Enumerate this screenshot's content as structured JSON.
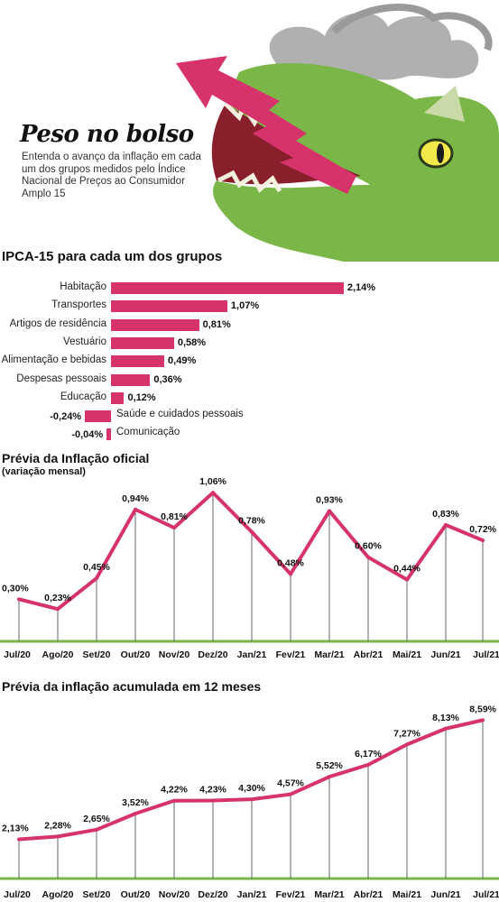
{
  "header": {
    "title": "Peso no bolso",
    "subtitle": "Entenda o avanço da inflação em cada um dos grupos medidos pelo Índice Nacional de Preços ao Consumidor Amplo 15"
  },
  "colors": {
    "accent": "#d6336c",
    "green": "#7ab648",
    "grey_line": "#666666"
  },
  "chart_data": [
    {
      "type": "bar",
      "orientation": "horizontal",
      "title": "IPCA-15 para cada um dos grupos",
      "categories": [
        "Habitação",
        "Transportes",
        "Artigos de residência",
        "Vestuário",
        "Alimentação e bebidas",
        "Despesas pessoais",
        "Educação",
        "Saúde e cuidados pessoais",
        "Comunicação"
      ],
      "values": [
        2.14,
        1.07,
        0.81,
        0.58,
        0.49,
        0.36,
        0.12,
        -0.24,
        -0.04
      ],
      "value_labels": [
        "2,14%",
        "1,07%",
        "0,81%",
        "0,58%",
        "0,49%",
        "0,36%",
        "0,12%",
        "-0,24%",
        "-0,04%"
      ]
    },
    {
      "type": "line",
      "title": "Prévia da Inflação oficial",
      "subtitle": "(variação mensal)",
      "categories": [
        "Jul/20",
        "Ago/20",
        "Set/20",
        "Out/20",
        "Nov/20",
        "Dez/20",
        "Jan/21",
        "Fev/21",
        "Mar/21",
        "Abr/21",
        "Mai/21",
        "Jun/21",
        "Jul/21"
      ],
      "values": [
        0.3,
        0.23,
        0.45,
        0.94,
        0.81,
        1.06,
        0.78,
        0.48,
        0.93,
        0.6,
        0.44,
        0.83,
        0.72
      ],
      "value_labels": [
        "0,30%",
        "0,23%",
        "0,45%",
        "0,94%",
        "0,81%",
        "1,06%",
        "0,78%",
        "0,48%",
        "0,93%",
        "0,60%",
        "0,44%",
        "0,83%",
        "0,72%"
      ],
      "ylim": [
        0,
        1.1
      ]
    },
    {
      "type": "line",
      "title": "Prévia da inflação acumulada em 12 meses",
      "categories": [
        "Jul/20",
        "Ago/20",
        "Set/20",
        "Out/20",
        "Nov/20",
        "Dez/20",
        "Jan/21",
        "Fev/21",
        "Mar/21",
        "Abr/21",
        "Mai/21",
        "Jun/21",
        "Jul/21"
      ],
      "values": [
        2.13,
        2.28,
        2.65,
        3.52,
        4.22,
        4.23,
        4.3,
        4.57,
        5.52,
        6.17,
        7.27,
        8.13,
        8.59
      ],
      "value_labels": [
        "2,13%",
        "2,28%",
        "2,65%",
        "3,52%",
        "4,22%",
        "4,23%",
        "4,30%",
        "4,57%",
        "5,52%",
        "6,17%",
        "7,27%",
        "8,13%",
        "8,59%"
      ],
      "ylim": [
        0,
        9
      ]
    }
  ]
}
